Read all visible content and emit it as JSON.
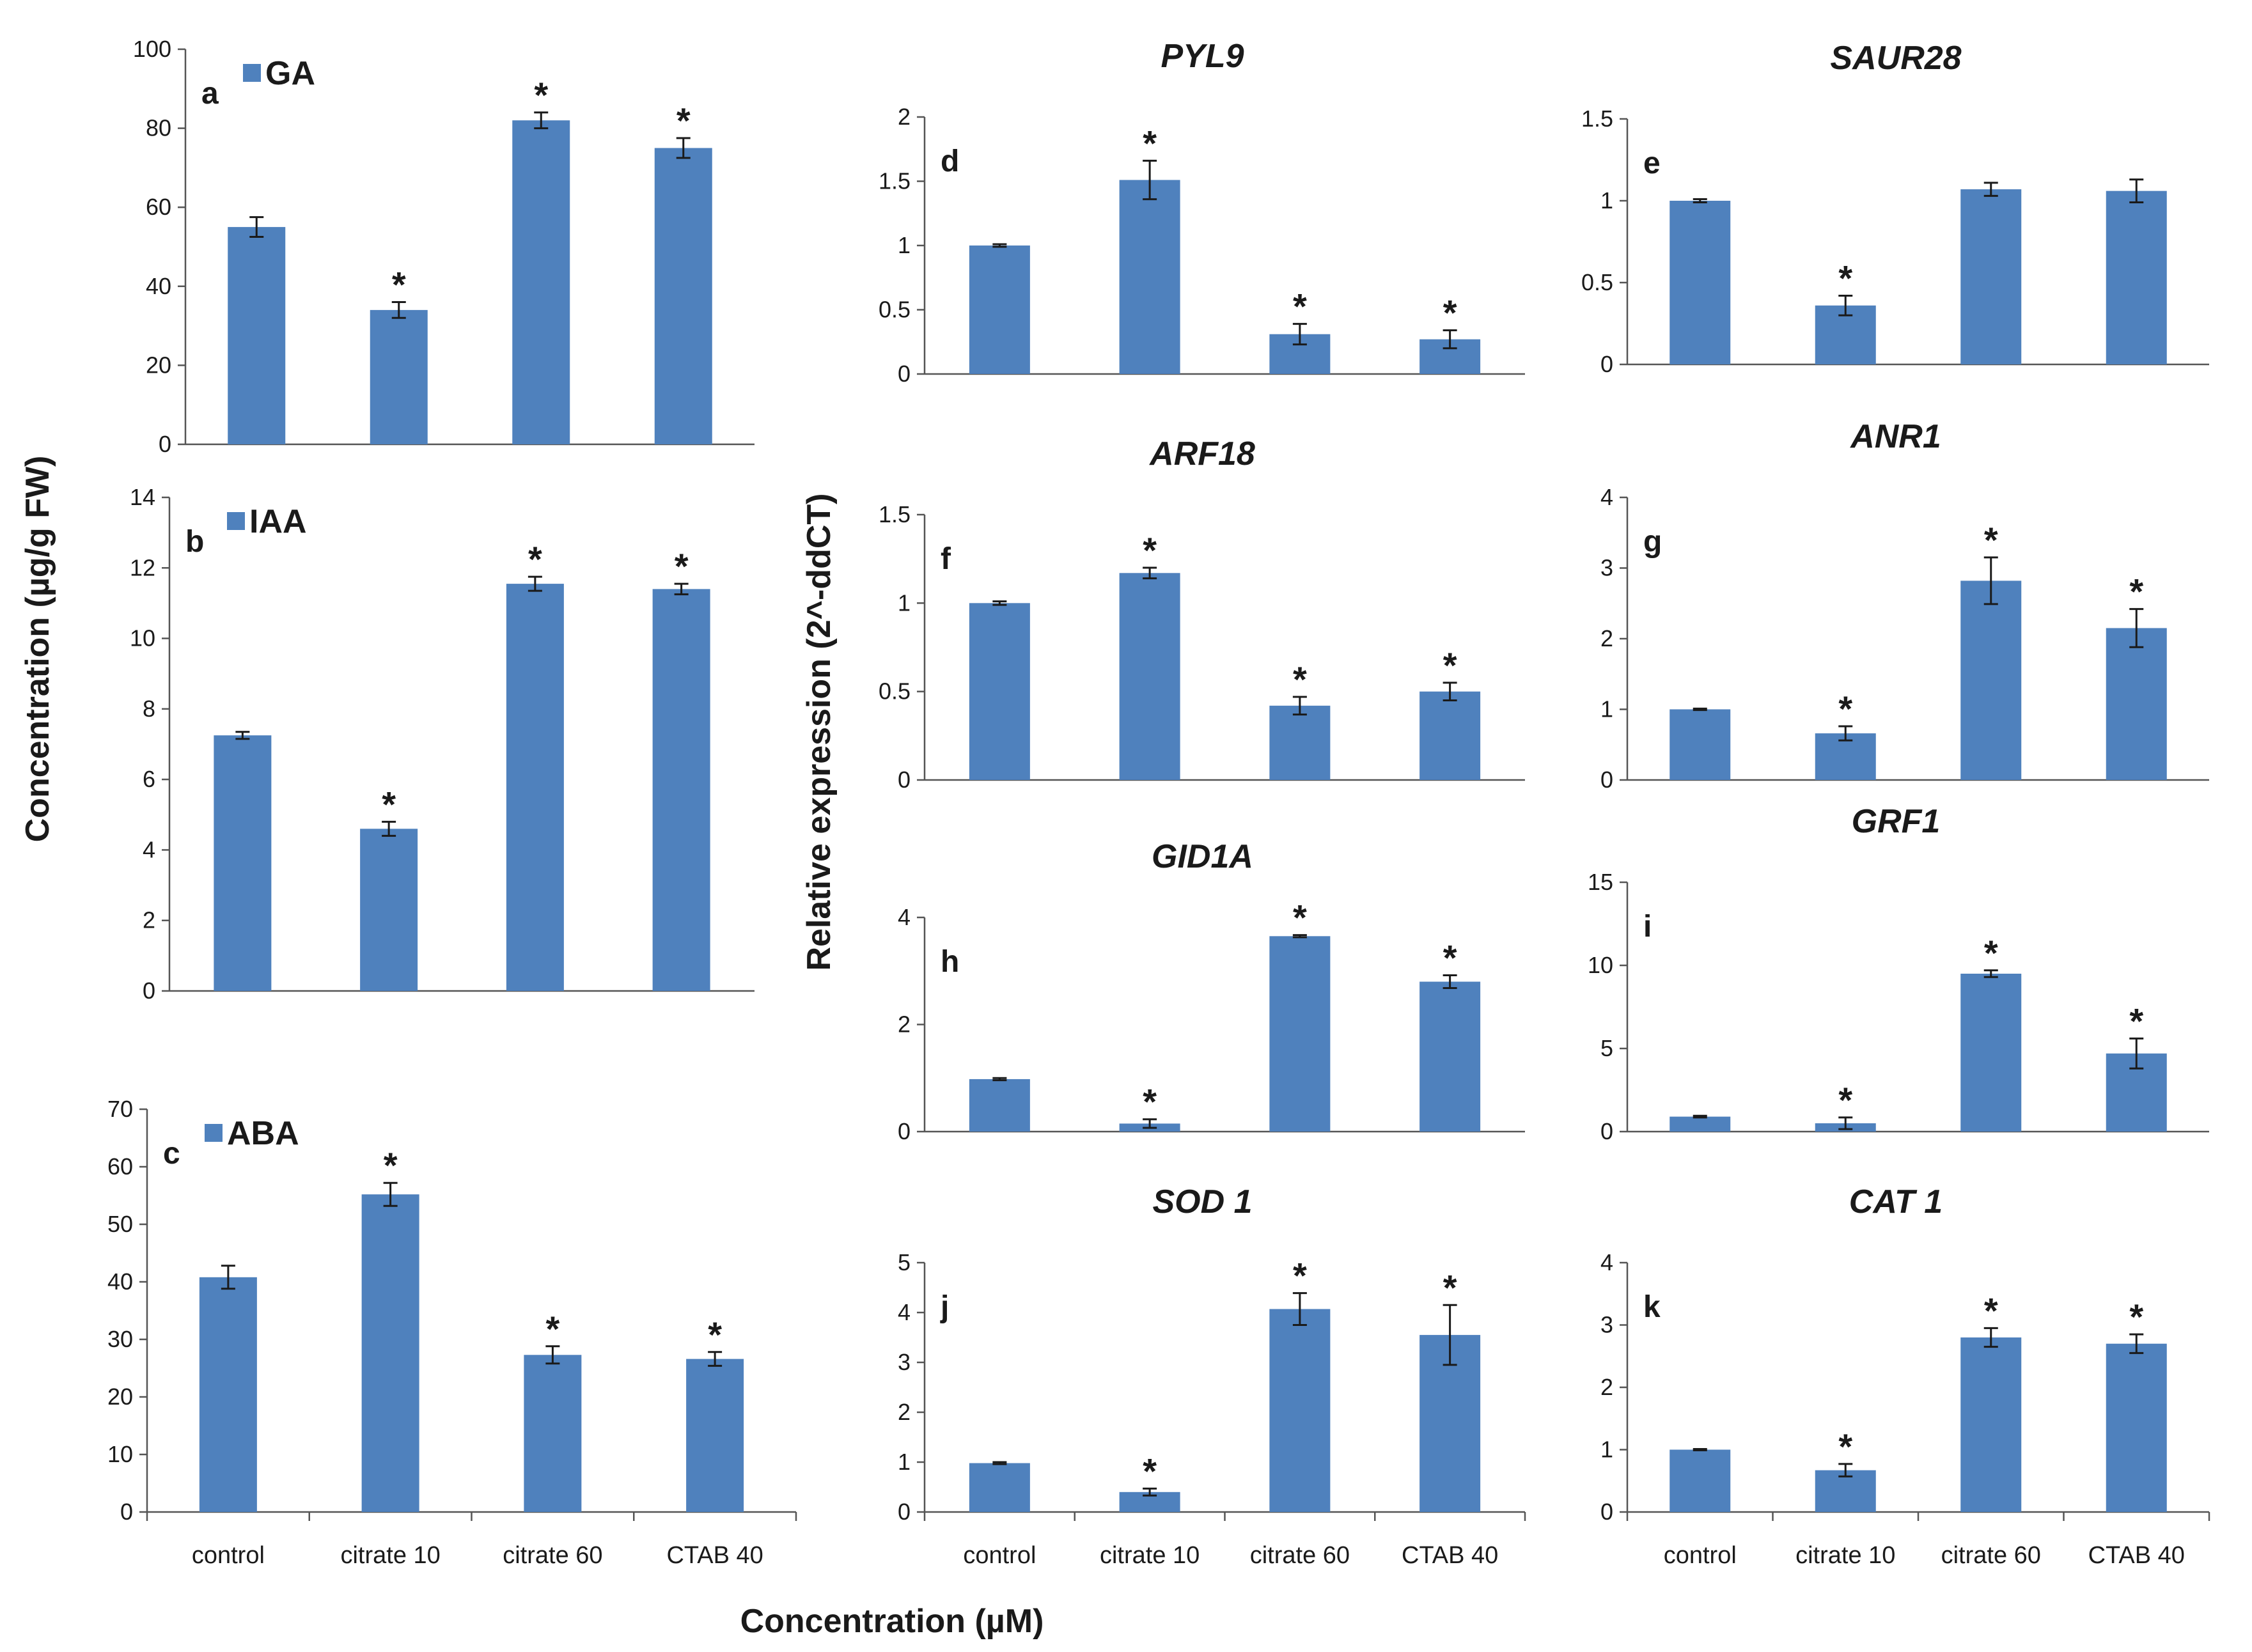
{
  "figure": {
    "left_ylabel": "Concentration (µg/g FW)",
    "middle_ylabel": "Relative expression (2^-ddCT)",
    "xlabel": "Concentration (µM)",
    "bar_color": "#4f81bd",
    "significance_marker": "*"
  },
  "chart_data": [
    {
      "id": "a",
      "type": "bar",
      "panel_label": "a",
      "legend": "GA",
      "title": "",
      "categories": [
        "control",
        "citrate 10",
        "citrate 60",
        "CTAB 40"
      ],
      "values": [
        55,
        34,
        82,
        75
      ],
      "errors": [
        2.5,
        2,
        2,
        2.5
      ],
      "significant": [
        false,
        true,
        true,
        true
      ],
      "yticks": [
        "0",
        "20",
        "40",
        "60",
        "80",
        "100"
      ],
      "ylim": [
        0,
        100
      ],
      "show_xlabels": false
    },
    {
      "id": "b",
      "type": "bar",
      "panel_label": "b",
      "legend": "IAA",
      "title": "",
      "categories": [
        "control",
        "citrate 10",
        "citrate 60",
        "CTAB 40"
      ],
      "values": [
        7.25,
        4.6,
        11.55,
        11.4
      ],
      "errors": [
        0.1,
        0.2,
        0.2,
        0.15
      ],
      "significant": [
        false,
        true,
        true,
        true
      ],
      "yticks": [
        "0",
        "2",
        "4",
        "6",
        "8",
        "10",
        "12",
        "14"
      ],
      "ylim": [
        0,
        14
      ],
      "show_xlabels": false
    },
    {
      "id": "c",
      "type": "bar",
      "panel_label": "c",
      "legend": "ABA",
      "title": "",
      "categories": [
        "control",
        "citrate 10",
        "citrate 60",
        "CTAB 40"
      ],
      "values": [
        40.8,
        55.2,
        27.3,
        26.6
      ],
      "errors": [
        2,
        2,
        1.5,
        1.2
      ],
      "significant": [
        false,
        true,
        true,
        true
      ],
      "yticks": [
        "0",
        "10",
        "20",
        "30",
        "40",
        "50",
        "60",
        "70"
      ],
      "ylim": [
        0,
        70
      ],
      "show_xlabels": true
    },
    {
      "id": "d",
      "type": "bar",
      "panel_label": "d",
      "legend": "",
      "title": "PYL9",
      "categories": [
        "control",
        "citrate 10",
        "citrate 60",
        "CTAB 40"
      ],
      "values": [
        1.0,
        1.51,
        0.31,
        0.27
      ],
      "errors": [
        0.01,
        0.15,
        0.08,
        0.07
      ],
      "significant": [
        false,
        true,
        true,
        true
      ],
      "yticks": [
        "0",
        "0.5",
        "1",
        "1.5",
        "2"
      ],
      "ylim": [
        0,
        2
      ],
      "show_xlabels": false
    },
    {
      "id": "e",
      "type": "bar",
      "panel_label": "e",
      "legend": "",
      "title": "SAUR28",
      "categories": [
        "control",
        "citrate 10",
        "citrate 60",
        "CTAB 40"
      ],
      "values": [
        1.0,
        0.36,
        1.07,
        1.06
      ],
      "errors": [
        0.01,
        0.06,
        0.04,
        0.07
      ],
      "significant": [
        false,
        true,
        false,
        false
      ],
      "yticks": [
        "0",
        "0.5",
        "1",
        "1.5"
      ],
      "ylim": [
        0,
        1.5
      ],
      "show_xlabels": false
    },
    {
      "id": "f",
      "type": "bar",
      "panel_label": "f",
      "legend": "",
      "title": "ARF18",
      "categories": [
        "control",
        "citrate 10",
        "citrate 60",
        "CTAB 40"
      ],
      "values": [
        1.0,
        1.17,
        0.42,
        0.5
      ],
      "errors": [
        0.01,
        0.03,
        0.05,
        0.05
      ],
      "significant": [
        false,
        true,
        true,
        true
      ],
      "yticks": [
        "0",
        "0.5",
        "1",
        "1.5"
      ],
      "ylim": [
        0,
        1.5
      ],
      "show_xlabels": false
    },
    {
      "id": "g",
      "type": "bar",
      "panel_label": "g",
      "legend": "",
      "title": "ANR1",
      "categories": [
        "control",
        "citrate 10",
        "citrate 60",
        "CTAB 40"
      ],
      "values": [
        1.0,
        0.66,
        2.82,
        2.15
      ],
      "errors": [
        0.01,
        0.1,
        0.33,
        0.27
      ],
      "significant": [
        false,
        true,
        true,
        true
      ],
      "yticks": [
        "0",
        "1",
        "2",
        "3",
        "4"
      ],
      "ylim": [
        0,
        4
      ],
      "show_xlabels": false
    },
    {
      "id": "h",
      "type": "bar",
      "panel_label": "h",
      "legend": "",
      "title": "GID1A",
      "categories": [
        "control",
        "citrate 10",
        "citrate 60",
        "CTAB 40"
      ],
      "values": [
        0.98,
        0.15,
        3.65,
        2.8
      ],
      "errors": [
        0.02,
        0.08,
        0.02,
        0.12
      ],
      "significant": [
        false,
        true,
        true,
        true
      ],
      "yticks": [
        "0",
        "2",
        "4"
      ],
      "ylim": [
        0,
        4
      ],
      "show_xlabels": false
    },
    {
      "id": "i",
      "type": "bar",
      "panel_label": "i",
      "legend": "",
      "title": "GRF1",
      "categories": [
        "control",
        "citrate 10",
        "citrate 60",
        "CTAB 40"
      ],
      "values": [
        0.9,
        0.5,
        9.5,
        4.7
      ],
      "errors": [
        0.05,
        0.35,
        0.2,
        0.9
      ],
      "significant": [
        false,
        true,
        true,
        true
      ],
      "yticks": [
        "0",
        "5",
        "10",
        "15"
      ],
      "ylim": [
        0,
        15
      ],
      "show_xlabels": false
    },
    {
      "id": "j",
      "type": "bar",
      "panel_label": "j",
      "legend": "",
      "title": "SOD 1",
      "categories": [
        "control",
        "citrate 10",
        "citrate 60",
        "CTAB 40"
      ],
      "values": [
        0.98,
        0.4,
        4.07,
        3.55
      ],
      "errors": [
        0.02,
        0.07,
        0.32,
        0.6
      ],
      "significant": [
        false,
        true,
        true,
        true
      ],
      "yticks": [
        "0",
        "1",
        "2",
        "3",
        "4",
        "5"
      ],
      "ylim": [
        0,
        5
      ],
      "show_xlabels": true
    },
    {
      "id": "k",
      "type": "bar",
      "panel_label": "k",
      "legend": "",
      "title": "CAT 1",
      "categories": [
        "control",
        "citrate 10",
        "citrate 60",
        "CTAB 40"
      ],
      "values": [
        1.0,
        0.67,
        2.8,
        2.7
      ],
      "errors": [
        0.01,
        0.1,
        0.15,
        0.15
      ],
      "significant": [
        false,
        true,
        true,
        true
      ],
      "yticks": [
        "0",
        "1",
        "2",
        "3",
        "4"
      ],
      "ylim": [
        0,
        4
      ],
      "show_xlabels": true
    }
  ]
}
